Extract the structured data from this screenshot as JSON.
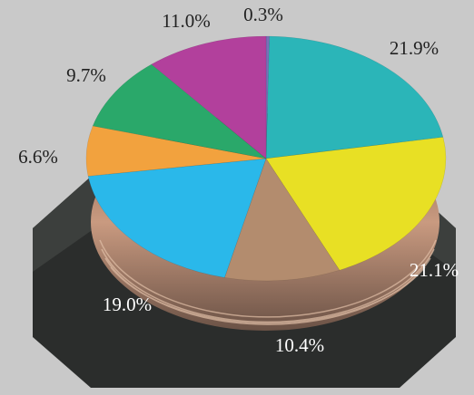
{
  "chart_data": {
    "type": "pie",
    "values": [
      0.3,
      21.9,
      21.1,
      10.4,
      19.0,
      6.6,
      9.7,
      11.0
    ],
    "value_labels": [
      "0.3%",
      "21.9%",
      "21.1%",
      "10.4%",
      "19.0%",
      "6.6%",
      "9.7%",
      "11.0%"
    ],
    "colors": [
      "#7a6fb8",
      "#2bb5b8",
      "#e8e024",
      "#b38c6e",
      "#2ab8ea",
      "#f2a23e",
      "#2aa86a",
      "#b2409c"
    ]
  }
}
